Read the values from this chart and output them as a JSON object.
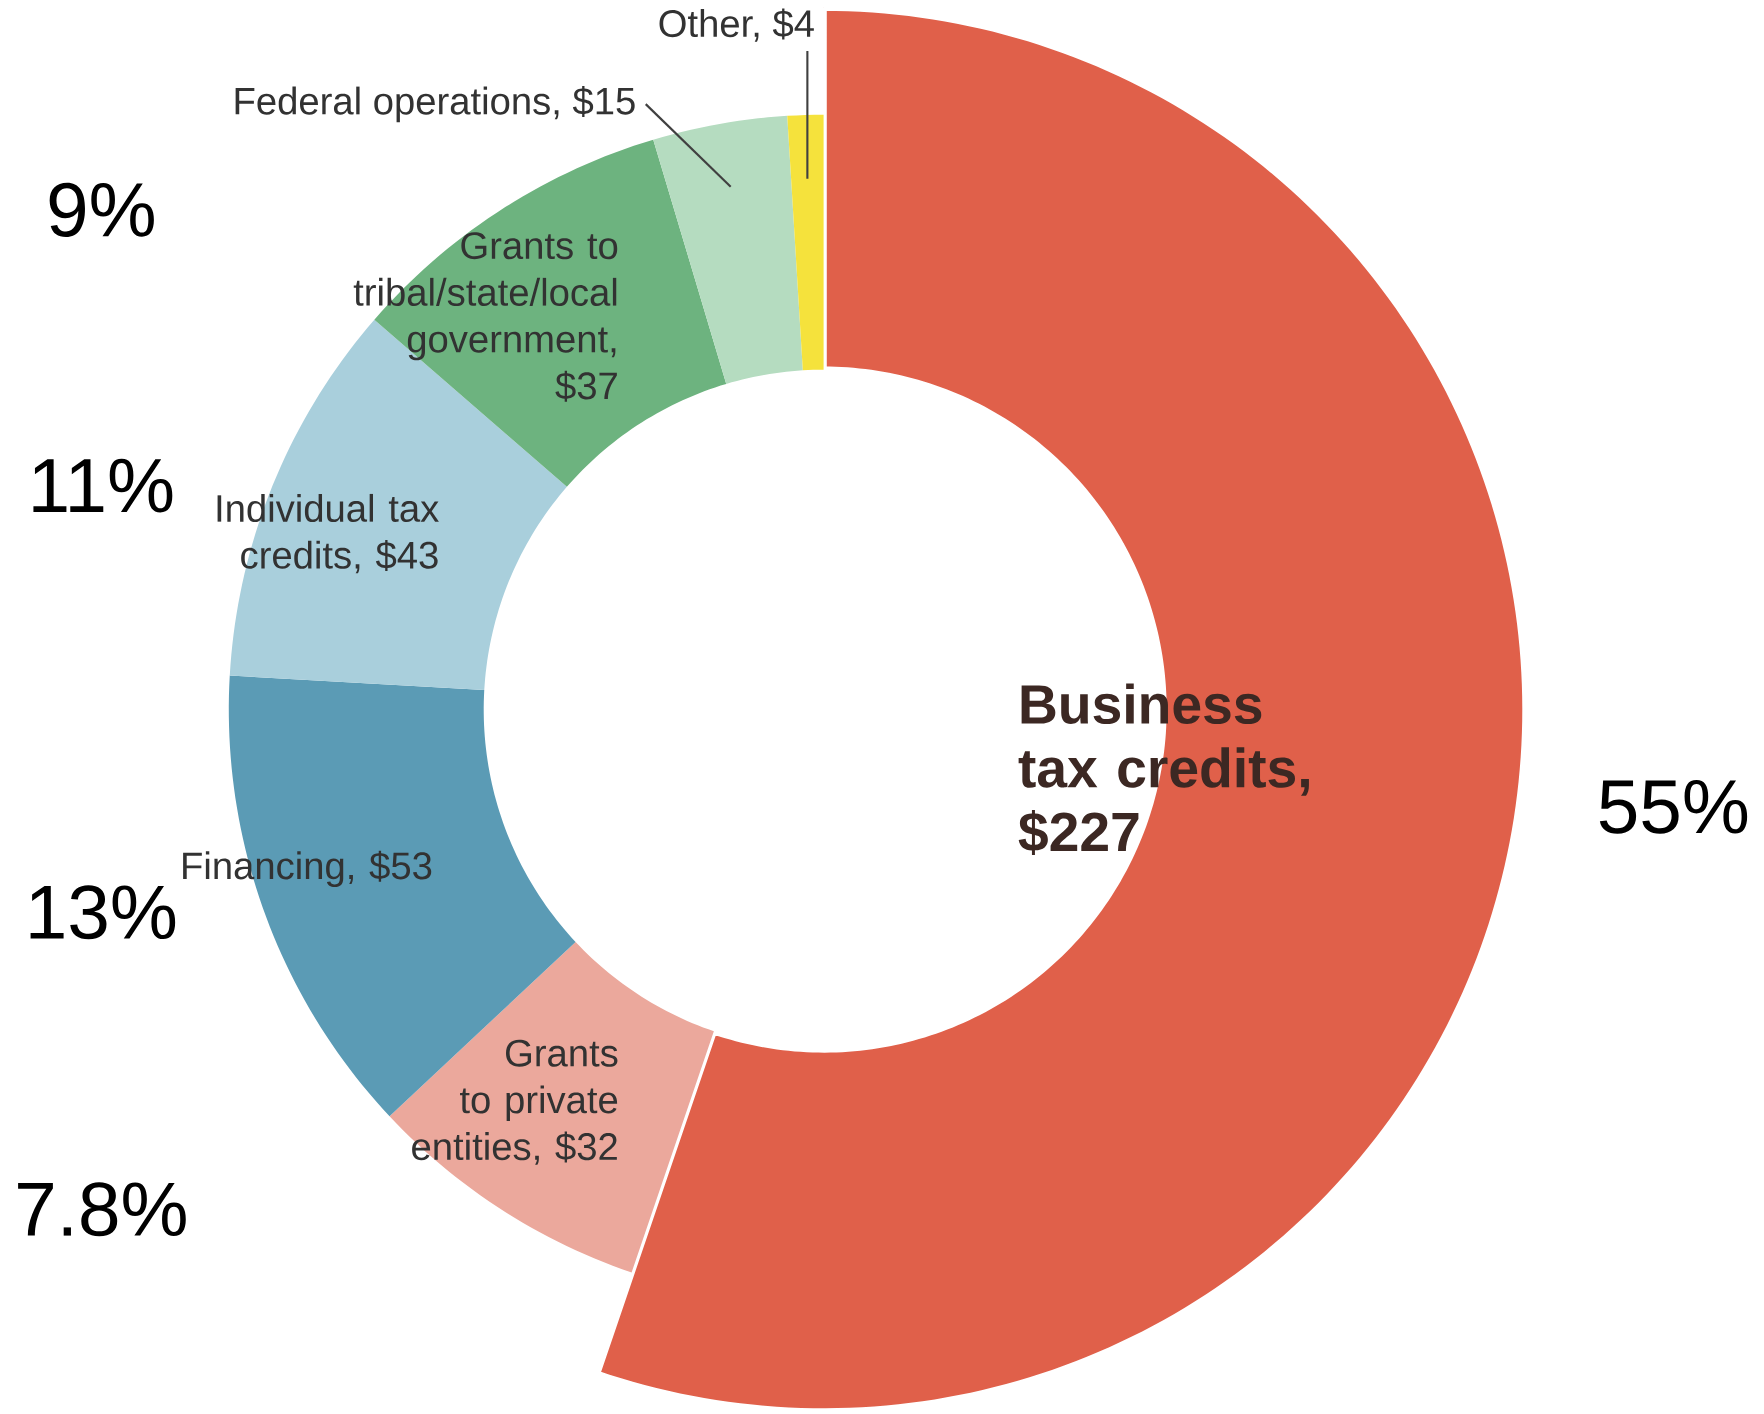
{
  "chart_data": {
    "type": "donut",
    "categories": [
      "Business tax credits, $227",
      "Grants to private entities, $32",
      "Financing, $53",
      "Individual tax credits, $43",
      "Grants to tribal/state/local government, $37",
      "Federal operations, $15",
      "Other, $4"
    ],
    "values": [
      227,
      32,
      53,
      43,
      37,
      15,
      4
    ],
    "colors": [
      "#e0604a",
      "#eba89c",
      "#5b9bb5",
      "#a9cfdc",
      "#6db37f",
      "#b5dcc0",
      "#f5e23c"
    ],
    "annotations": [
      "55%",
      "7.8%",
      "13%",
      "11%",
      "9%"
    ]
  }
}
